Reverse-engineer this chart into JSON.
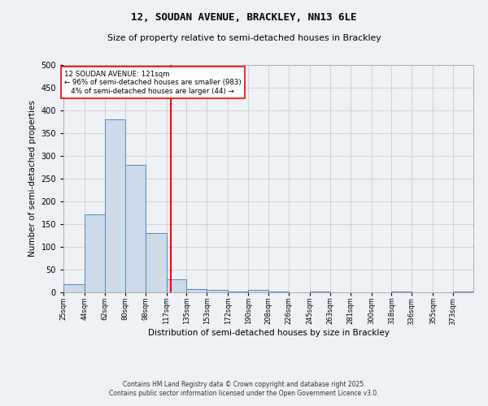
{
  "title1": "12, SOUDAN AVENUE, BRACKLEY, NN13 6LE",
  "title2": "Size of property relative to semi-detached houses in Brackley",
  "xlabel": "Distribution of semi-detached houses by size in Brackley",
  "ylabel": "Number of semi-detached properties",
  "bin_edges": [
    25,
    44,
    62,
    80,
    98,
    117,
    135,
    153,
    172,
    190,
    208,
    226,
    245,
    263,
    281,
    300,
    318,
    336,
    355,
    373,
    391
  ],
  "bin_counts": [
    17,
    172,
    381,
    281,
    131,
    28,
    8,
    5,
    2,
    5,
    2,
    0,
    2,
    0,
    0,
    0,
    2,
    0,
    0,
    2
  ],
  "bar_facecolor": "#ccdaea",
  "bar_edgecolor": "#5588bb",
  "vline_x": 121,
  "vline_color": "red",
  "annotation_line1": "12 SOUDAN AVENUE: 121sqm",
  "annotation_line2": "← 96% of semi-detached houses are smaller (983)",
  "annotation_line3": "   4% of semi-detached houses are larger (44) →",
  "annotation_box_color": "white",
  "annotation_box_edgecolor": "red",
  "ylim": [
    0,
    500
  ],
  "yticks": [
    0,
    50,
    100,
    150,
    200,
    250,
    300,
    350,
    400,
    450,
    500
  ],
  "grid_color": "#cccccc",
  "background_color": "#eef2f7",
  "footer1": "Contains HM Land Registry data © Crown copyright and database right 2025.",
  "footer2": "Contains public sector information licensed under the Open Government Licence v3.0."
}
